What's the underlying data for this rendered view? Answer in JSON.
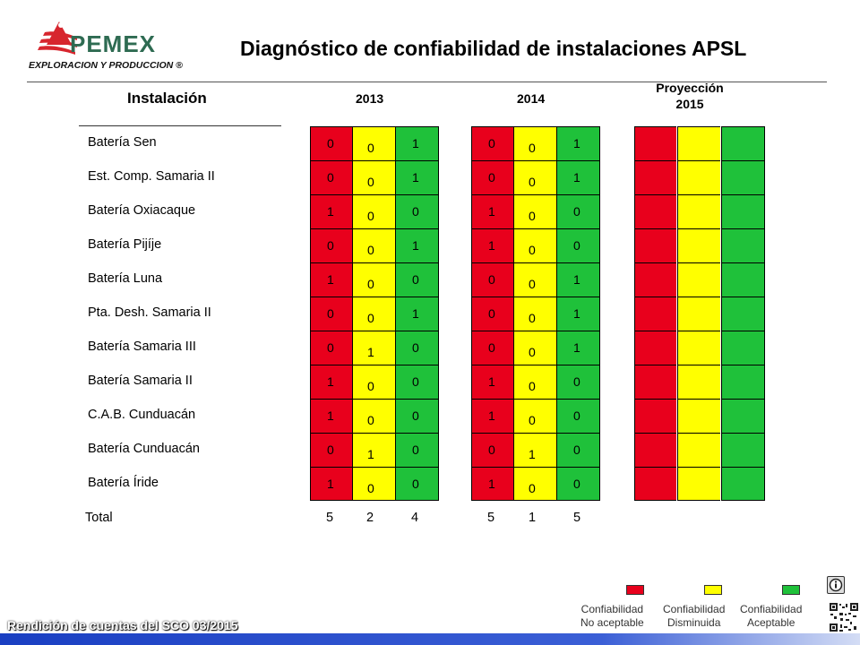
{
  "logo": {
    "brand": "PEMEX",
    "subtitle": "EXPLORACION Y PRODUCCION ®"
  },
  "title": "Diagnóstico de confiabilidad de instalaciones APSL",
  "headers": {
    "installation": "Instalación",
    "y2013": "2013",
    "y2014": "2014",
    "projection_line1": "Proyección",
    "projection_line2": "2015"
  },
  "colors": {
    "red": "#e8001c",
    "yellow": "#ffff00",
    "green": "#1fc13a"
  },
  "rows": [
    {
      "name": "Batería Sen",
      "v2013": [
        "0",
        "0",
        "1"
      ],
      "v2014": [
        "0",
        "0",
        "1"
      ]
    },
    {
      "name": "Est. Comp. Samaria II",
      "v2013": [
        "0",
        "0",
        "1"
      ],
      "v2014": [
        "0",
        "0",
        "1"
      ]
    },
    {
      "name": "Batería Oxiacaque",
      "v2013": [
        "1",
        "0",
        "0"
      ],
      "v2014": [
        "1",
        "0",
        "0"
      ]
    },
    {
      "name": "Batería Pijíje",
      "v2013": [
        "0",
        "0",
        "1"
      ],
      "v2014": [
        "1",
        "0",
        "0"
      ]
    },
    {
      "name": "Batería Luna",
      "v2013": [
        "1",
        "0",
        "0"
      ],
      "v2014": [
        "0",
        "0",
        "1"
      ]
    },
    {
      "name": "Pta. Desh. Samaria II",
      "v2013": [
        "0",
        "0",
        "1"
      ],
      "v2014": [
        "0",
        "0",
        "1"
      ]
    },
    {
      "name": "Batería Samaria III",
      "v2013": [
        "0",
        "1",
        "0"
      ],
      "v2014": [
        "0",
        "0",
        "1"
      ]
    },
    {
      "name": "Batería Samaria II",
      "v2013": [
        "1",
        "0",
        "0"
      ],
      "v2014": [
        "1",
        "0",
        "0"
      ]
    },
    {
      "name": "C.A.B. Cunduacán",
      "v2013": [
        "1",
        "0",
        "0"
      ],
      "v2014": [
        "1",
        "0",
        "0"
      ]
    },
    {
      "name": "Batería Cunduacán",
      "v2013": [
        "0",
        "1",
        "0"
      ],
      "v2014": [
        "0",
        "1",
        "0"
      ]
    },
    {
      "name": "Batería Íride",
      "v2013": [
        "1",
        "0",
        "0"
      ],
      "v2014": [
        "1",
        "0",
        "0"
      ]
    }
  ],
  "total": {
    "label": "Total",
    "v2013": [
      "5",
      "2",
      "4"
    ],
    "v2014": [
      "5",
      "1",
      "5"
    ]
  },
  "legend": [
    {
      "line1": "Confiabilidad",
      "line2": "No aceptable",
      "color": "#e8001c"
    },
    {
      "line1": "Confiabilidad",
      "line2": "Disminuida",
      "color": "#ffff00"
    },
    {
      "line1": "Confiabilidad",
      "line2": "Aceptable",
      "color": "#1fc13a"
    }
  ],
  "footer": "Rendición de cuentas del SCO 03/2015",
  "icons": {
    "logo": "pemex-eagle-logo",
    "info": "info-icon",
    "qr": "qr-code-icon"
  }
}
